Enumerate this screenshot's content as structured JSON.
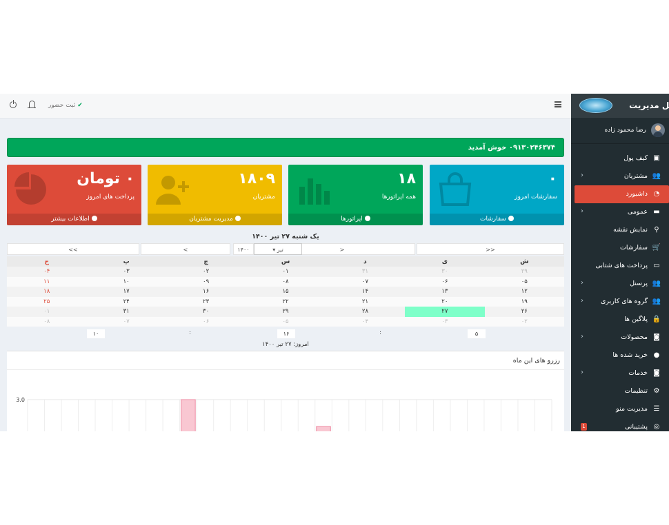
{
  "sidebar": {
    "title": "پنل مدیریت",
    "user_name": "رضا محمود زاده",
    "items": [
      {
        "label": "کیف پول",
        "icon": "wallet-icon",
        "chevron": false,
        "active": false
      },
      {
        "label": "مشتریان",
        "icon": "users-icon",
        "chevron": true,
        "active": false
      },
      {
        "label": "داشبورد",
        "icon": "dashboard-icon",
        "chevron": false,
        "active": true
      },
      {
        "label": "عمومی",
        "icon": "card-icon",
        "chevron": true,
        "active": false
      },
      {
        "label": "نمایش نقشه",
        "icon": "map-marker-icon",
        "chevron": false,
        "active": false
      },
      {
        "label": "سفارشات",
        "icon": "cart-icon",
        "chevron": false,
        "active": false
      },
      {
        "label": "پرداخت های شتابی",
        "icon": "credit-card-icon",
        "chevron": false,
        "active": false
      },
      {
        "label": "پرسنل",
        "icon": "users-icon",
        "chevron": true,
        "active": false
      },
      {
        "label": "گروه های کاربری",
        "icon": "users-icon",
        "chevron": true,
        "active": false
      },
      {
        "label": "پلاگین ها",
        "icon": "lock-icon",
        "chevron": false,
        "active": false
      },
      {
        "label": "محصولات",
        "icon": "camera-icon",
        "chevron": true,
        "active": false
      },
      {
        "label": "خرید شده ها",
        "icon": "circle-icon",
        "chevron": false,
        "active": false
      },
      {
        "label": "خدمات",
        "icon": "camera-icon",
        "chevron": true,
        "active": false
      },
      {
        "label": "تنظیمات",
        "icon": "gears-icon",
        "chevron": false,
        "active": false
      },
      {
        "label": "مدیریت منو",
        "icon": "list-icon",
        "chevron": false,
        "active": false
      },
      {
        "label": "پشتیبانی",
        "icon": "support-icon",
        "chevron": false,
        "active": false,
        "badge": "1"
      }
    ]
  },
  "topbar": {
    "checkin_label": "ثبت حضور"
  },
  "welcome": "۰۹۱۳۰۲۴۶۳۷۴ خوش آمدید",
  "boxes": [
    {
      "value": "۰",
      "caption": "سفارشات امروز",
      "footer": "سفارشات",
      "color": "#00a7c6",
      "icon": "shopping-bag-icon"
    },
    {
      "value": "۱۸",
      "caption": "همه اپراتورها",
      "footer": "اپراتورها",
      "color": "#00a65a",
      "icon": "bar-chart-icon"
    },
    {
      "value": "۱۸۰۹",
      "caption": "مشتریان",
      "footer": "مدیریت مشتریان",
      "color": "#f0bc00",
      "icon": "user-add-icon"
    },
    {
      "value": "۰ تومان",
      "caption": "پرداخت های امروز",
      "footer": "اطلاعات بیشتر",
      "color": "#dd4b39",
      "icon": "pie-chart-icon"
    }
  ],
  "datepicker": {
    "full_date": "یک شنبه ۲۷ تیر ۱۴۰۰",
    "nav": {
      "prev_year": "<<",
      "prev_month": "<",
      "month": "تیر",
      "year": "۱۴۰۰",
      "next_month": ">",
      "next_year": ">>"
    },
    "weekdays": [
      "ش",
      "ی",
      "د",
      "س",
      "چ",
      "پ",
      "ج"
    ],
    "weeks": [
      [
        "۲۹",
        "۳۰",
        "۳۱",
        "۰۱",
        "۰۲",
        "۰۳",
        "۰۴"
      ],
      [
        "۰۵",
        "۰۶",
        "۰۷",
        "۰۸",
        "۰۹",
        "۱۰",
        "۱۱"
      ],
      [
        "۱۲",
        "۱۳",
        "۱۴",
        "۱۵",
        "۱۶",
        "۱۷",
        "۱۸"
      ],
      [
        "۱۹",
        "۲۰",
        "۲۱",
        "۲۲",
        "۲۳",
        "۲۴",
        "۲۵"
      ],
      [
        "۲۶",
        "۲۷",
        "۲۸",
        "۲۹",
        "۳۰",
        "۳۱",
        "۰۱"
      ],
      [
        "۰۲",
        "۰۳",
        "۰۴",
        "۰۵",
        "۰۶",
        "۰۷",
        "۰۸"
      ]
    ],
    "today_day": "۲۷",
    "time": {
      "hour": "۵",
      "minute": "۱۶",
      "second": "۱۰"
    },
    "today_label": "امروز: ۲۷ تیر ۱۴۰۰"
  },
  "chart_panel": {
    "title": "رزرو های این ماه"
  },
  "chart_data": {
    "type": "bar",
    "title": "رزرو های این ماه",
    "ytick_labels": [
      "3.0"
    ],
    "ylim": [
      0,
      3.0
    ],
    "bar_color": "#f9c7d2",
    "visible_bars": [
      {
        "slot": 9,
        "value": 3.0
      },
      {
        "slot": 17,
        "value": 2.0
      }
    ],
    "grid": true
  }
}
